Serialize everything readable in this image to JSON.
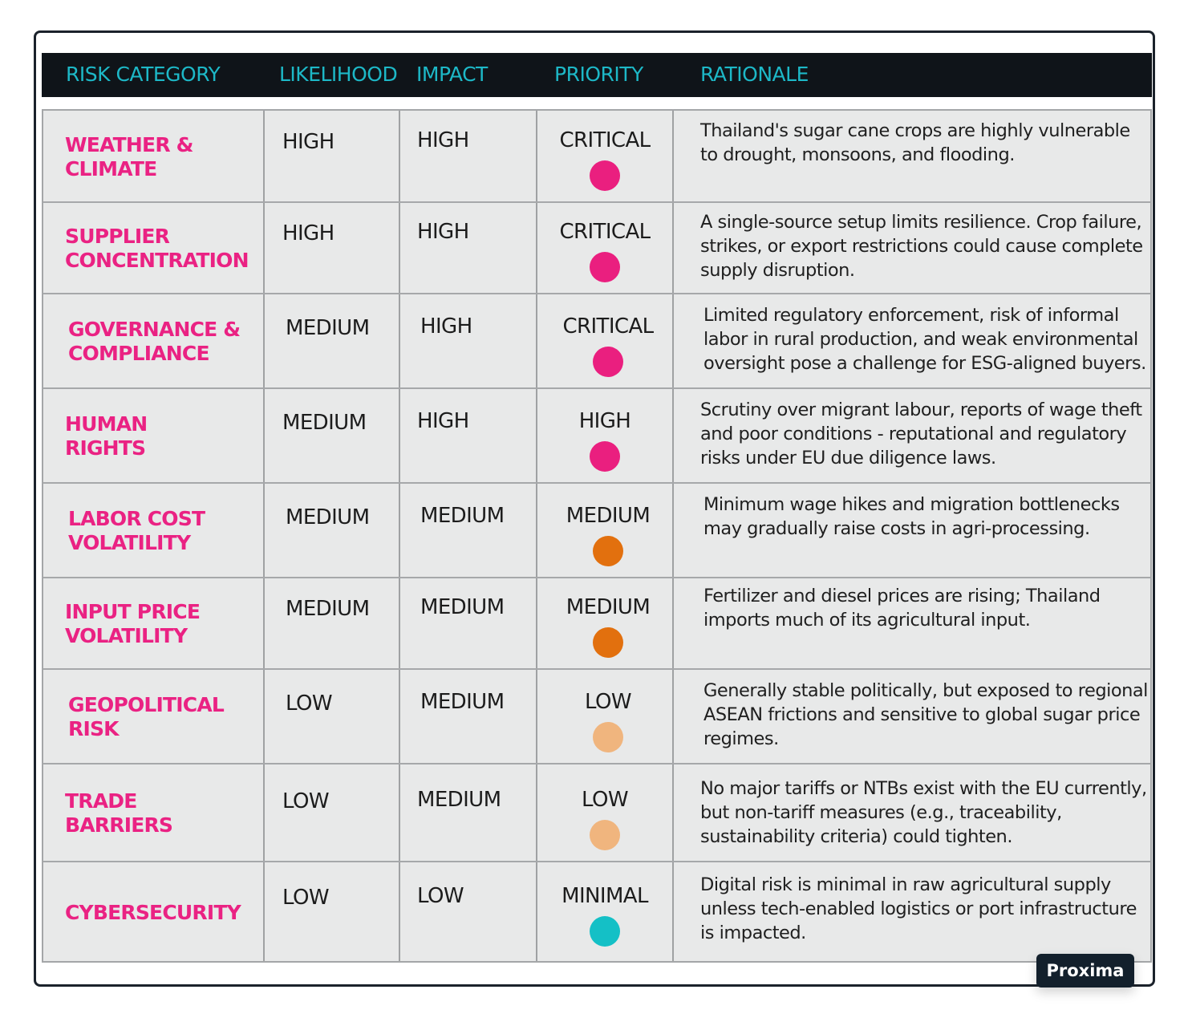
{
  "header": {
    "risk_category": "RISK CATEGORY",
    "likelihood": "LIKELIHOOD",
    "impact": "IMPACT",
    "priority": "PRIORITY",
    "rationale": "RATIONALE"
  },
  "rows": [
    {
      "category": "WEATHER &\nCLIMATE",
      "likelihood": "HIGH",
      "impact": "HIGH",
      "priority": "CRITICAL",
      "dot_color": "#ea1f7f",
      "rationale": "Thailand's sugar cane crops are highly vulnerable to drought, monsoons, and flooding."
    },
    {
      "category": "SUPPLIER\nCONCENTRATION",
      "likelihood": "HIGH",
      "impact": "HIGH",
      "priority": "CRITICAL",
      "dot_color": "#ea1f7f",
      "rationale": "A single-source setup limits resilience. Crop failure, strikes, or export restrictions could cause complete supply disruption."
    },
    {
      "category": "GOVERNANCE &\nCOMPLIANCE",
      "likelihood": "MEDIUM",
      "impact": "HIGH",
      "priority": "CRITICAL",
      "dot_color": "#ea1f7f",
      "rationale": "Limited regulatory enforcement, risk of informal labor in rural production, and weak environmental oversight pose a challenge for ESG-aligned buyers."
    },
    {
      "category": "HUMAN\nRIGHTS",
      "likelihood": "MEDIUM",
      "impact": "HIGH",
      "priority": "HIGH",
      "dot_color": "#ea1f7f",
      "rationale": "Scrutiny over migrant labour, reports of wage theft and poor conditions - reputational and regulatory risks under EU due diligence laws."
    },
    {
      "category": "LABOR COST\nVOLATILITY",
      "likelihood": "MEDIUM",
      "impact": "MEDIUM",
      "priority": "MEDIUM",
      "dot_color": "#e2700e",
      "rationale": "Minimum wage hikes and migration bottlenecks may gradually raise costs in agri-processing."
    },
    {
      "category": "INPUT PRICE\nVOLATILITY",
      "likelihood": "MEDIUM",
      "impact": "MEDIUM",
      "priority": "MEDIUM",
      "dot_color": "#e2700e",
      "rationale": "Fertilizer and diesel prices are rising; Thailand imports much of its agricultural input."
    },
    {
      "category": "GEOPOLITICAL\nRISK",
      "likelihood": "LOW",
      "impact": "MEDIUM",
      "priority": "LOW",
      "dot_color": "#f0b57e",
      "rationale": "Generally stable politically, but exposed to regional ASEAN frictions and sensitive to global sugar price regimes."
    },
    {
      "category": "TRADE\nBARRIERS",
      "likelihood": "LOW",
      "impact": "MEDIUM",
      "priority": "LOW",
      "dot_color": "#f0b57e",
      "rationale": "No major tariffs or NTBs exist with the EU currently, but non-tariff measures (e.g., traceability, sustainability criteria) could tighten."
    },
    {
      "category": "CYBERSECURITY",
      "likelihood": "LOW",
      "impact": "LOW",
      "priority": "MINIMAL",
      "dot_color": "#14c0c6",
      "rationale": "Digital risk is minimal in raw agricultural supply unless tech-enabled logistics or port infrastructure is impacted."
    }
  ],
  "badge": "Proxima"
}
